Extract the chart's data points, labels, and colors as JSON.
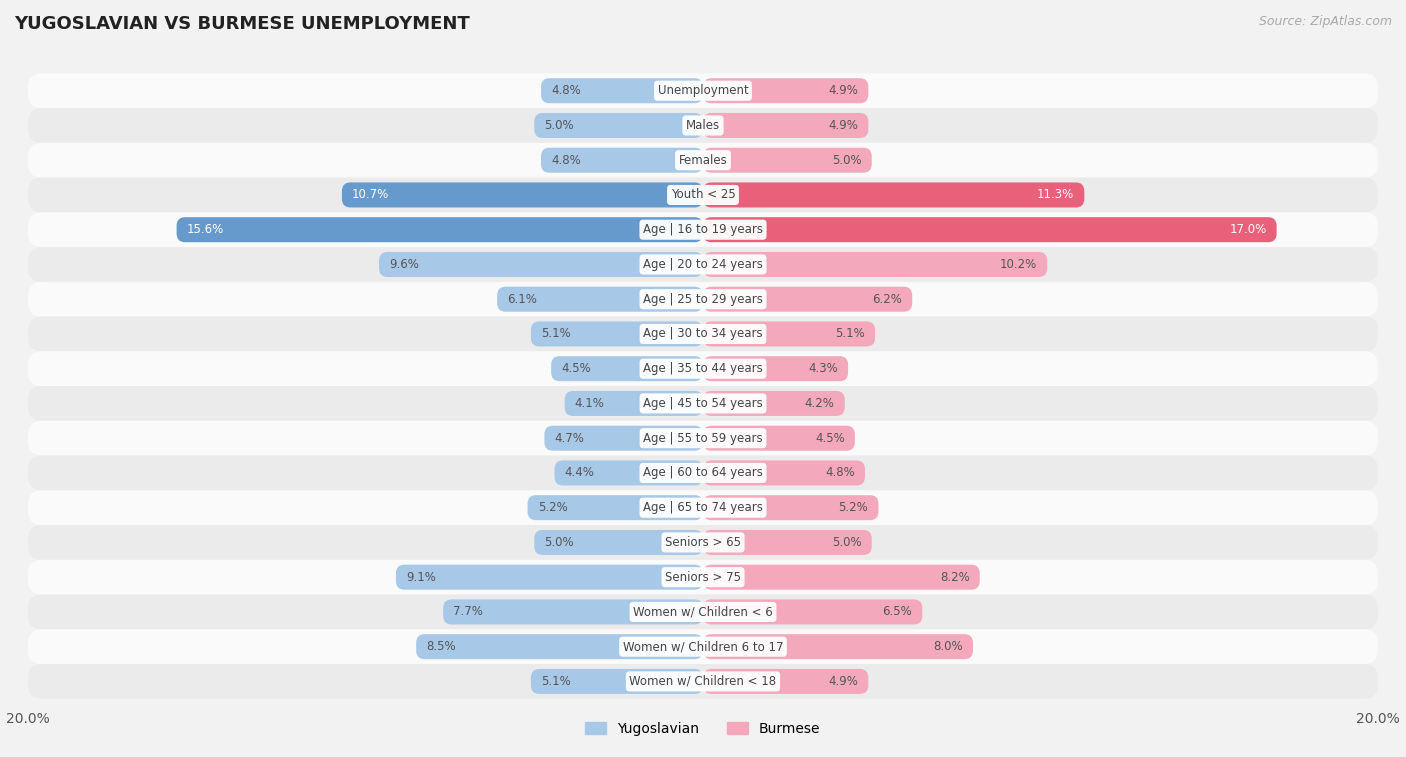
{
  "title": "YUGOSLAVIAN VS BURMESE UNEMPLOYMENT",
  "source": "Source: ZipAtlas.com",
  "categories": [
    "Unemployment",
    "Males",
    "Females",
    "Youth < 25",
    "Age | 16 to 19 years",
    "Age | 20 to 24 years",
    "Age | 25 to 29 years",
    "Age | 30 to 34 years",
    "Age | 35 to 44 years",
    "Age | 45 to 54 years",
    "Age | 55 to 59 years",
    "Age | 60 to 64 years",
    "Age | 65 to 74 years",
    "Seniors > 65",
    "Seniors > 75",
    "Women w/ Children < 6",
    "Women w/ Children 6 to 17",
    "Women w/ Children < 18"
  ],
  "yugoslavian": [
    4.8,
    5.0,
    4.8,
    10.7,
    15.6,
    9.6,
    6.1,
    5.1,
    4.5,
    4.1,
    4.7,
    4.4,
    5.2,
    5.0,
    9.1,
    7.7,
    8.5,
    5.1
  ],
  "burmese": [
    4.9,
    4.9,
    5.0,
    11.3,
    17.0,
    10.2,
    6.2,
    5.1,
    4.3,
    4.2,
    4.5,
    4.8,
    5.2,
    5.0,
    8.2,
    6.5,
    8.0,
    4.9
  ],
  "yugoslav_color_normal": "#a8c8e8",
  "burmese_color_normal": "#f4a8bc",
  "yugoslav_color_highlight": "#6699cc",
  "burmese_color_highlight": "#e8607a",
  "axis_max": 20.0,
  "bg_color": "#f2f2f2",
  "row_color_even": "#fafafa",
  "row_color_odd": "#ebebeb",
  "highlight_rows": [
    3,
    4
  ],
  "label_fontsize": 8.5,
  "value_fontsize": 8.5,
  "title_fontsize": 13,
  "source_fontsize": 9
}
